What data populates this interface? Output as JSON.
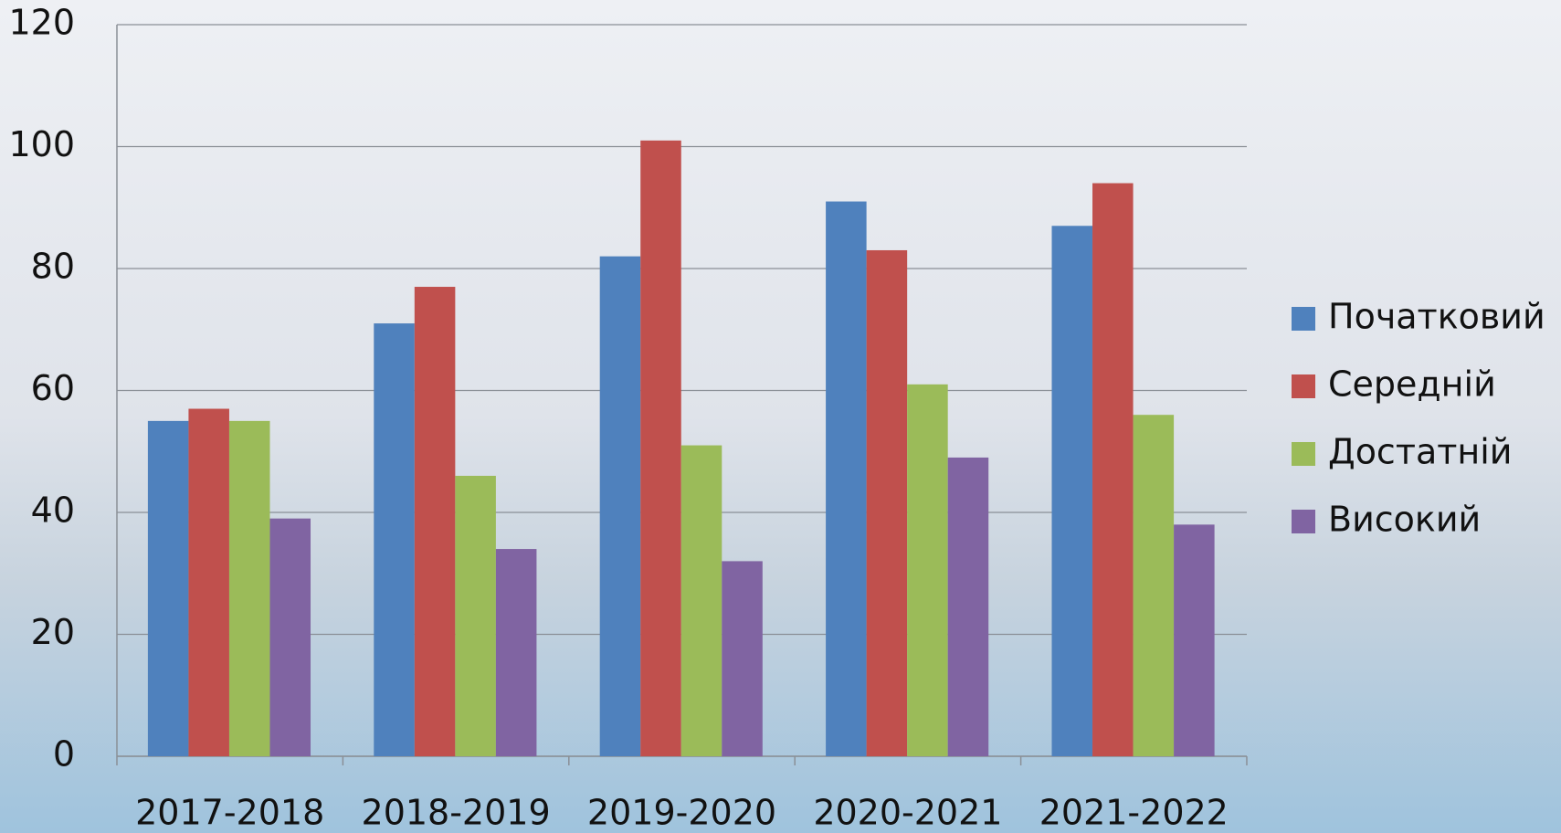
{
  "chart_data": {
    "type": "bar",
    "categories": [
      "2017-2018",
      "2018-2019",
      "2019-2020",
      "2020-2021",
      "2021-2022"
    ],
    "series": [
      {
        "name": "Початковий",
        "color": "#4f81bd",
        "values": [
          55,
          71,
          82,
          91,
          87
        ]
      },
      {
        "name": "Середній",
        "color": "#c0504d",
        "values": [
          57,
          77,
          101,
          83,
          94
        ]
      },
      {
        "name": "Достатній",
        "color": "#9bbb59",
        "values": [
          55,
          46,
          51,
          61,
          56
        ]
      },
      {
        "name": "Високий",
        "color": "#8064a2",
        "values": [
          39,
          34,
          32,
          49,
          38
        ]
      }
    ],
    "ylim": [
      0,
      120
    ],
    "yticks": [
      0,
      20,
      40,
      60,
      80,
      100,
      120
    ],
    "grid": true,
    "legend": "right"
  }
}
